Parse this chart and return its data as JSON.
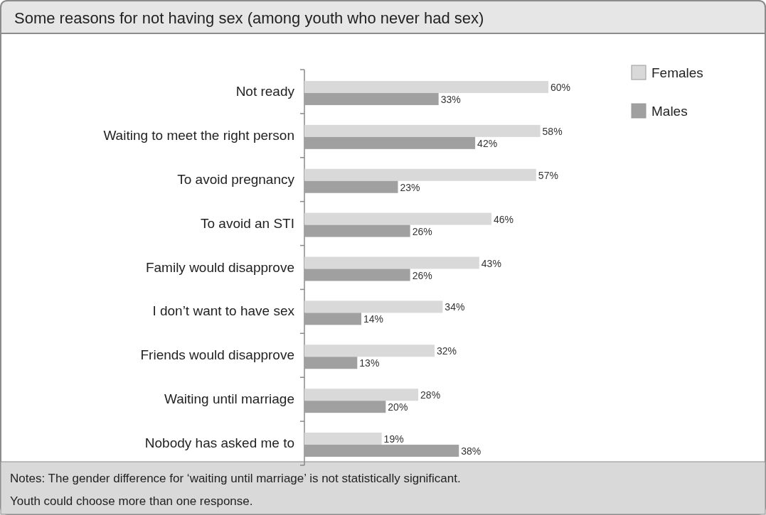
{
  "chart_data": {
    "type": "bar",
    "orientation": "horizontal",
    "title": "Some reasons for not having sex (among youth who never had sex)",
    "categories": [
      "Not ready",
      "Waiting to meet the right person",
      "To avoid pregnancy",
      "To avoid an STI",
      "Family would disapprove",
      "I don’t want to have sex",
      "Friends would disapprove",
      "Waiting until marriage",
      "Nobody has asked me to"
    ],
    "series": [
      {
        "name": "Females",
        "color": "#d9d9d9",
        "values": [
          60,
          58,
          57,
          46,
          43,
          34,
          32,
          28,
          19
        ],
        "value_labels": [
          "60%",
          "58%",
          "57%",
          "46%",
          "43%",
          "34%",
          "32%",
          "28%",
          "19%"
        ]
      },
      {
        "name": "Males",
        "color": "#a0a0a0",
        "values": [
          33,
          42,
          23,
          26,
          26,
          14,
          13,
          20,
          38
        ],
        "value_labels": [
          "33%",
          "42%",
          "23%",
          "26%",
          "26%",
          "14%",
          "13%",
          "20%",
          "38%"
        ]
      }
    ],
    "legend": "top right",
    "annotations": [
      "Notes: The gender difference for ‘waiting until marriage’ is not statistically significant.",
      "Youth could choose more than one response."
    ]
  }
}
